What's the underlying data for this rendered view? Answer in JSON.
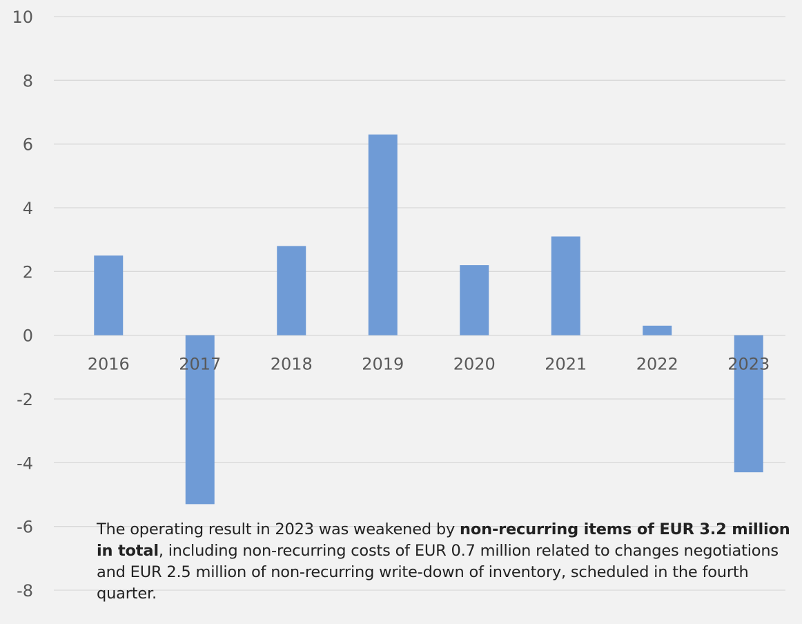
{
  "chart_data": {
    "type": "bar",
    "categories": [
      "2016",
      "2017",
      "2018",
      "2019",
      "2020",
      "2021",
      "2022",
      "2023"
    ],
    "values": [
      2.5,
      -5.3,
      2.8,
      6.3,
      2.2,
      3.1,
      0.3,
      -4.3
    ],
    "ylim": [
      -8,
      10
    ],
    "yticks": [
      "10",
      "8",
      "6",
      "4",
      "2",
      "0",
      "-2",
      "-4",
      "-6",
      "-8"
    ],
    "grid": true,
    "bar_color": "#6f9bd6",
    "grid_color": "#d9d9d9",
    "annotation": {
      "text_before": "The operating result in 2023 was weakened by ",
      "text_bold": "non-recurring items of EUR 3.2 million in total",
      "text_after": ", including non-recurring costs of EUR 0.7 million related to changes negotiations and EUR 2.5 million of non-recurring write-down of inventory, scheduled in the fourth quarter."
    }
  }
}
